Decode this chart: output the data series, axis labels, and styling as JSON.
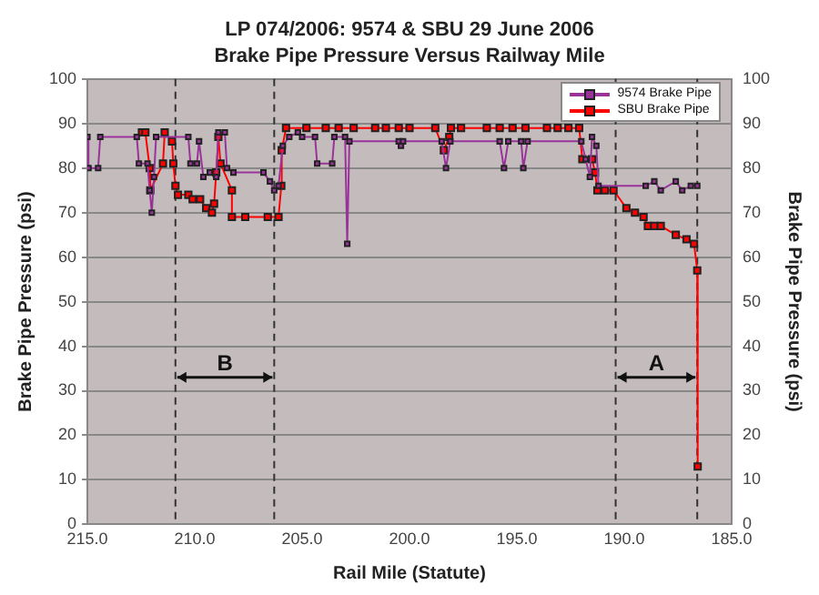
{
  "chart_data": {
    "type": "line",
    "title": "LP 074/2006: 9574 & SBU 29 June 2006",
    "subtitle": "Brake Pipe Pressure Versus Railway Mile",
    "xlabel": "Rail Mile (Statute)",
    "ylabel": "Brake Pipe Pressure (psi)",
    "y2label": "Brake Pipe Pressure (psi)",
    "xlim": [
      215,
      185
    ],
    "xticks": [
      {
        "value": 215,
        "label": "215.0"
      },
      {
        "value": 210,
        "label": "210.0"
      },
      {
        "value": 205,
        "label": "205.0"
      },
      {
        "value": 200,
        "label": "200.0"
      },
      {
        "value": 195,
        "label": "195.0"
      },
      {
        "value": 190,
        "label": "190.0"
      },
      {
        "value": 185,
        "label": "185.0"
      }
    ],
    "ylim": [
      0,
      100
    ],
    "yticks": [
      0,
      10,
      20,
      30,
      40,
      50,
      60,
      70,
      80,
      90,
      100
    ],
    "y2lim": [
      0,
      100
    ],
    "y2ticks": [
      0,
      10,
      20,
      30,
      40,
      50,
      60,
      70,
      80,
      90,
      100
    ],
    "grid": "y",
    "legend": "top right",
    "series": [
      {
        "name": "9574 Brake Pipe",
        "color": "#993399",
        "marker": "square",
        "x": [
          215.0,
          214.95,
          214.5,
          214.4,
          212.7,
          212.6,
          212.2,
          212.1,
          212.0,
          211.9,
          211.8,
          210.3,
          210.2,
          209.9,
          209.8,
          209.6,
          209.3,
          209.0,
          208.9,
          208.6,
          208.5,
          208.2,
          206.8,
          206.5,
          206.3,
          206.1,
          205.9,
          205.6,
          205.2,
          205.0,
          204.4,
          204.3,
          203.6,
          203.5,
          203.0,
          202.9,
          202.8,
          200.5,
          200.4,
          200.3,
          198.5,
          198.3,
          198.1,
          195.8,
          195.6,
          195.4,
          194.8,
          194.7,
          194.5,
          192.0,
          191.8,
          191.6,
          191.5,
          191.3,
          191.2,
          189.0,
          188.6,
          188.3,
          187.6,
          187.3,
          186.9,
          186.6
        ],
        "values": [
          87,
          80,
          80,
          87,
          87,
          81,
          81,
          75,
          70,
          78,
          87,
          87,
          81,
          81,
          86,
          78,
          79,
          78,
          88,
          88,
          80,
          79,
          79,
          77,
          75,
          76,
          85,
          87,
          88,
          87,
          87,
          81,
          81,
          87,
          87,
          63,
          86,
          86,
          85,
          86,
          86,
          80,
          86,
          86,
          80,
          86,
          86,
          80,
          86,
          86,
          82,
          78,
          87,
          85,
          76,
          76,
          77,
          75,
          77,
          75,
          76,
          76
        ]
      },
      {
        "name": "SBU Brake Pipe",
        "color": "#ff0000",
        "marker": "square",
        "x": [
          212.46,
          212.3,
          212.1,
          212.07,
          211.48,
          211.4,
          211.06,
          211.0,
          210.9,
          210.78,
          210.3,
          210.1,
          209.75,
          209.47,
          209.2,
          209.1,
          209.0,
          208.9,
          208.8,
          208.27,
          208.27,
          207.65,
          206.6,
          206.1,
          205.97,
          205.95,
          205.75,
          204.8,
          203.9,
          203.3,
          202.6,
          201.6,
          201.1,
          200.5,
          200.0,
          198.8,
          198.4,
          198.15,
          198.07,
          197.6,
          196.4,
          195.8,
          195.2,
          194.6,
          193.6,
          193.1,
          192.6,
          192.1,
          191.95,
          191.5,
          191.36,
          191.25,
          190.9,
          190.5,
          189.9,
          189.5,
          189.1,
          188.9,
          188.6,
          188.3,
          187.6,
          187.1,
          186.75,
          186.6,
          186.58
        ],
        "values": [
          88,
          88,
          80,
          75,
          81,
          88,
          86,
          81,
          76,
          74,
          74,
          73,
          73,
          71,
          70,
          72,
          79,
          87,
          81,
          75,
          69,
          69,
          69,
          69,
          76,
          84,
          89,
          89,
          89,
          89,
          89,
          89,
          89,
          89,
          89,
          89,
          84,
          87,
          89,
          89,
          89,
          89,
          89,
          89,
          89,
          89,
          89,
          89,
          82,
          82,
          79,
          75,
          75,
          75,
          71,
          70,
          69,
          67,
          67,
          67,
          65,
          64,
          63,
          57,
          13
        ]
      }
    ],
    "ref_lines": [
      {
        "axis": "x",
        "value": 210.9,
        "color": "#333333",
        "line_style": "dashed"
      },
      {
        "axis": "x",
        "value": 206.3,
        "color": "#333333",
        "line_style": "dashed"
      },
      {
        "axis": "x",
        "value": 190.4,
        "color": "#333333",
        "line_style": "dashed"
      },
      {
        "axis": "x",
        "value": 186.6,
        "color": "#333333",
        "line_style": "dashed"
      }
    ],
    "annotations": [
      "B",
      "A"
    ]
  }
}
